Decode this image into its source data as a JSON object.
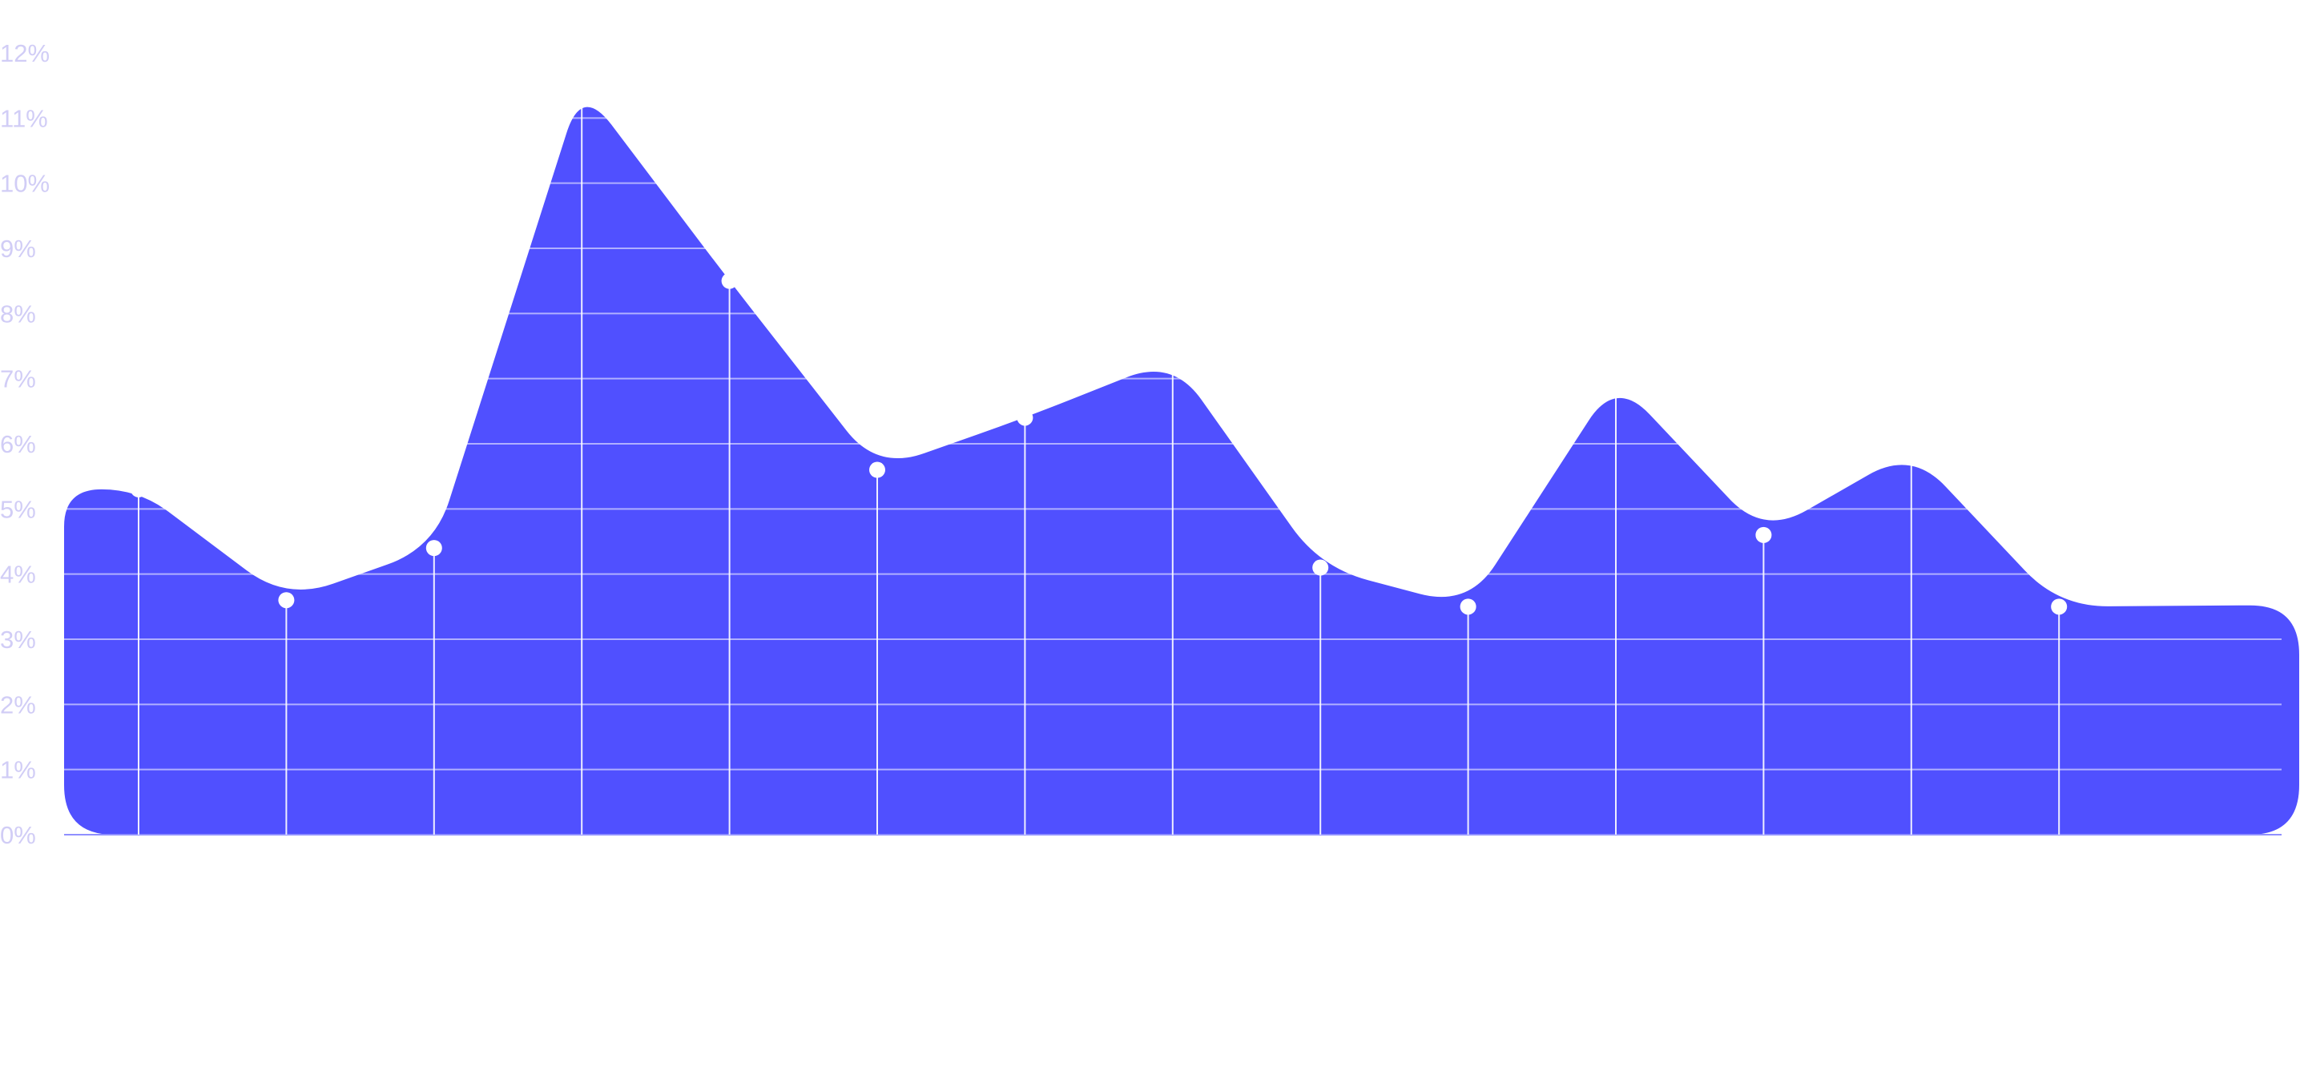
{
  "chart_data": {
    "type": "area",
    "title": "",
    "xlabel": "",
    "ylabel": "",
    "y_ticks": [
      "0%",
      "1%",
      "2%",
      "3%",
      "4%",
      "5%",
      "6%",
      "7%",
      "8%",
      "9%",
      "10%",
      "11%",
      "12%"
    ],
    "ylim": [
      0,
      12
    ],
    "x_tick_labels_visible": false,
    "grid": true,
    "legend": "none",
    "series": [
      {
        "values": [
          5.3,
          3.6,
          4.4,
          11.5,
          8.5,
          5.6,
          6.4,
          7.3,
          4.1,
          3.5,
          7.0,
          4.6,
          5.9,
          3.5
        ]
      }
    ],
    "colors": {
      "area_fill": "#5050ff",
      "grid_line": "#a5a5ff",
      "tick_label": "#d1cdf6",
      "marker": "#ffffff"
    }
  }
}
